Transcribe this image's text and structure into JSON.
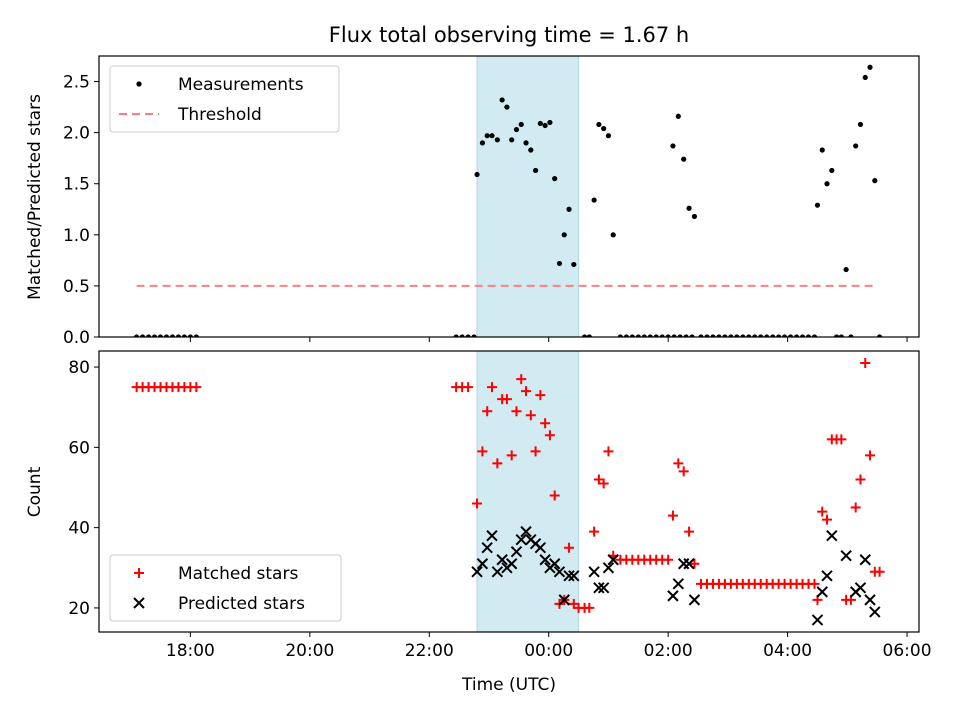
{
  "chart_data": [
    {
      "type": "scatter",
      "title": "Flux total observing time = 1.67 h",
      "xlabel": "",
      "ylabel": "Matched/Predicted stars",
      "xlim": [
        16.47,
        30.2
      ],
      "ylim": [
        0,
        2.75
      ],
      "yticks": [
        0.0,
        0.5,
        1.0,
        1.5,
        2.0,
        2.5
      ],
      "ytick_labels": [
        "0.0",
        "0.5",
        "1.0",
        "1.5",
        "2.0",
        "2.5"
      ],
      "shaded_interval": {
        "x": [
          22.8,
          24.5
        ],
        "color": "#add8e6"
      },
      "legend_position": "upper left",
      "threshold": {
        "name": "Threshold",
        "y": 0.5,
        "x": [
          17.1,
          29.5
        ],
        "color": "#ff7f7f",
        "style": "dashed"
      },
      "series": [
        {
          "name": "Measurements",
          "marker": "dot",
          "color": "#000000",
          "points": [
            [
              17.1,
              0
            ],
            [
              17.2,
              0
            ],
            [
              17.3,
              0
            ],
            [
              17.4,
              0
            ],
            [
              17.5,
              0
            ],
            [
              17.6,
              0
            ],
            [
              17.7,
              0
            ],
            [
              17.8,
              0
            ],
            [
              17.9,
              0
            ],
            [
              18.0,
              0
            ],
            [
              18.1,
              0
            ],
            [
              22.45,
              0
            ],
            [
              22.55,
              0
            ],
            [
              22.65,
              0
            ],
            [
              22.75,
              0
            ],
            [
              22.8,
              1.59
            ],
            [
              22.89,
              1.9
            ],
            [
              22.97,
              1.97
            ],
            [
              23.05,
              1.97
            ],
            [
              23.14,
              1.93
            ],
            [
              23.22,
              2.32
            ],
            [
              23.3,
              2.25
            ],
            [
              23.38,
              1.93
            ],
            [
              23.46,
              2.03
            ],
            [
              23.54,
              2.08
            ],
            [
              23.62,
              1.9
            ],
            [
              23.7,
              1.83
            ],
            [
              23.78,
              1.63
            ],
            [
              23.86,
              2.09
            ],
            [
              23.94,
              2.07
            ],
            [
              24.02,
              2.1
            ],
            [
              24.1,
              1.55
            ],
            [
              24.18,
              0.72
            ],
            [
              24.26,
              1.0
            ],
            [
              24.34,
              1.25
            ],
            [
              24.42,
              0.71
            ],
            [
              24.6,
              0
            ],
            [
              24.68,
              0
            ],
            [
              24.76,
              1.34
            ],
            [
              24.84,
              2.08
            ],
            [
              24.92,
              2.04
            ],
            [
              25.0,
              1.97
            ],
            [
              25.08,
              1.0
            ],
            [
              25.2,
              0
            ],
            [
              25.3,
              0
            ],
            [
              25.4,
              0
            ],
            [
              25.5,
              0
            ],
            [
              25.6,
              0
            ],
            [
              25.7,
              0
            ],
            [
              25.8,
              0
            ],
            [
              25.9,
              0
            ],
            [
              26.0,
              0
            ],
            [
              26.1,
              0
            ],
            [
              26.2,
              0
            ],
            [
              26.3,
              0
            ],
            [
              26.4,
              0
            ],
            [
              26.08,
              1.87
            ],
            [
              26.17,
              2.16
            ],
            [
              26.26,
              1.74
            ],
            [
              26.35,
              1.26
            ],
            [
              26.44,
              1.18
            ],
            [
              26.55,
              0
            ],
            [
              26.65,
              0
            ],
            [
              26.75,
              0
            ],
            [
              26.85,
              0
            ],
            [
              26.95,
              0
            ],
            [
              27.05,
              0
            ],
            [
              27.15,
              0
            ],
            [
              27.25,
              0
            ],
            [
              27.35,
              0
            ],
            [
              27.45,
              0
            ],
            [
              27.55,
              0
            ],
            [
              27.65,
              0
            ],
            [
              27.75,
              0
            ],
            [
              27.85,
              0
            ],
            [
              27.95,
              0
            ],
            [
              28.05,
              0
            ],
            [
              28.15,
              0
            ],
            [
              28.25,
              0
            ],
            [
              28.35,
              0
            ],
            [
              28.45,
              0
            ],
            [
              28.5,
              1.29
            ],
            [
              28.58,
              1.83
            ],
            [
              28.66,
              1.5
            ],
            [
              28.74,
              1.63
            ],
            [
              28.82,
              0
            ],
            [
              28.9,
              0
            ],
            [
              28.98,
              0.66
            ],
            [
              29.06,
              0
            ],
            [
              29.14,
              1.87
            ],
            [
              29.22,
              2.08
            ],
            [
              29.3,
              2.54
            ],
            [
              29.38,
              2.64
            ],
            [
              29.46,
              1.53
            ],
            [
              29.54,
              0
            ]
          ]
        }
      ]
    },
    {
      "type": "scatter",
      "xlabel": "Time (UTC)",
      "ylabel": "Count",
      "xlim": [
        16.47,
        30.2
      ],
      "ylim": [
        14,
        84
      ],
      "xticks": [
        18,
        20,
        22,
        24,
        26,
        28,
        30
      ],
      "xtick_labels": [
        "18:00",
        "20:00",
        "22:00",
        "00:00",
        "02:00",
        "04:00",
        "06:00"
      ],
      "yticks": [
        20,
        40,
        60,
        80
      ],
      "ytick_labels": [
        "20",
        "40",
        "60",
        "80"
      ],
      "shaded_interval": {
        "x": [
          22.8,
          24.5
        ],
        "color": "#add8e6"
      },
      "legend_position": "lower left",
      "series": [
        {
          "name": "Matched stars",
          "marker": "plus",
          "color": "#ff0000",
          "points": [
            [
              17.1,
              75
            ],
            [
              17.2,
              75
            ],
            [
              17.3,
              75
            ],
            [
              17.4,
              75
            ],
            [
              17.5,
              75
            ],
            [
              17.6,
              75
            ],
            [
              17.7,
              75
            ],
            [
              17.8,
              75
            ],
            [
              17.9,
              75
            ],
            [
              18.0,
              75
            ],
            [
              18.1,
              75
            ],
            [
              22.45,
              75
            ],
            [
              22.55,
              75
            ],
            [
              22.65,
              75
            ],
            [
              22.8,
              46
            ],
            [
              22.89,
              59
            ],
            [
              22.97,
              69
            ],
            [
              23.05,
              75
            ],
            [
              23.14,
              56
            ],
            [
              23.22,
              72
            ],
            [
              23.3,
              72
            ],
            [
              23.38,
              58
            ],
            [
              23.46,
              69
            ],
            [
              23.54,
              77
            ],
            [
              23.62,
              74
            ],
            [
              23.7,
              68
            ],
            [
              23.78,
              59
            ],
            [
              23.86,
              73
            ],
            [
              23.94,
              66
            ],
            [
              24.02,
              63
            ],
            [
              24.1,
              48
            ],
            [
              24.18,
              21
            ],
            [
              24.26,
              22
            ],
            [
              24.34,
              35
            ],
            [
              24.42,
              21
            ],
            [
              24.5,
              20
            ],
            [
              24.6,
              20
            ],
            [
              24.68,
              20
            ],
            [
              24.76,
              39
            ],
            [
              24.84,
              52
            ],
            [
              24.92,
              51
            ],
            [
              25.0,
              59
            ],
            [
              25.08,
              33
            ],
            [
              25.2,
              32
            ],
            [
              25.3,
              32
            ],
            [
              25.4,
              32
            ],
            [
              25.5,
              32
            ],
            [
              25.6,
              32
            ],
            [
              25.7,
              32
            ],
            [
              25.8,
              32
            ],
            [
              25.9,
              32
            ],
            [
              26.0,
              32
            ],
            [
              26.08,
              43
            ],
            [
              26.17,
              56
            ],
            [
              26.26,
              54
            ],
            [
              26.35,
              39
            ],
            [
              26.44,
              31
            ],
            [
              26.55,
              26
            ],
            [
              26.65,
              26
            ],
            [
              26.75,
              26
            ],
            [
              26.85,
              26
            ],
            [
              26.95,
              26
            ],
            [
              27.05,
              26
            ],
            [
              27.15,
              26
            ],
            [
              27.25,
              26
            ],
            [
              27.35,
              26
            ],
            [
              27.45,
              26
            ],
            [
              27.55,
              26
            ],
            [
              27.65,
              26
            ],
            [
              27.75,
              26
            ],
            [
              27.85,
              26
            ],
            [
              27.95,
              26
            ],
            [
              28.05,
              26
            ],
            [
              28.15,
              26
            ],
            [
              28.25,
              26
            ],
            [
              28.35,
              26
            ],
            [
              28.45,
              26
            ],
            [
              28.5,
              22
            ],
            [
              28.58,
              44
            ],
            [
              28.66,
              42
            ],
            [
              28.74,
              62
            ],
            [
              28.82,
              62
            ],
            [
              28.9,
              62
            ],
            [
              28.98,
              22
            ],
            [
              29.06,
              22
            ],
            [
              29.14,
              45
            ],
            [
              29.22,
              52
            ],
            [
              29.3,
              81
            ],
            [
              29.38,
              58
            ],
            [
              29.46,
              29
            ],
            [
              29.54,
              29
            ]
          ]
        },
        {
          "name": "Predicted stars",
          "marker": "x",
          "color": "#000000",
          "points": [
            [
              22.8,
              29
            ],
            [
              22.89,
              31
            ],
            [
              22.97,
              35
            ],
            [
              23.05,
              38
            ],
            [
              23.14,
              29
            ],
            [
              23.22,
              32
            ],
            [
              23.3,
              30
            ],
            [
              23.38,
              31
            ],
            [
              23.46,
              34
            ],
            [
              23.54,
              37
            ],
            [
              23.62,
              39
            ],
            [
              23.7,
              37
            ],
            [
              23.78,
              36
            ],
            [
              23.86,
              35
            ],
            [
              23.94,
              32
            ],
            [
              24.02,
              30
            ],
            [
              24.1,
              31
            ],
            [
              24.18,
              29
            ],
            [
              24.26,
              22
            ],
            [
              24.34,
              28
            ],
            [
              24.42,
              28
            ],
            [
              24.76,
              29
            ],
            [
              24.84,
              25
            ],
            [
              24.92,
              25
            ],
            [
              25.0,
              30
            ],
            [
              25.08,
              32
            ],
            [
              26.08,
              23
            ],
            [
              26.17,
              26
            ],
            [
              26.26,
              31
            ],
            [
              26.35,
              31
            ],
            [
              26.44,
              22
            ],
            [
              28.5,
              17
            ],
            [
              28.58,
              24
            ],
            [
              28.66,
              28
            ],
            [
              28.74,
              38
            ],
            [
              28.98,
              33
            ],
            [
              29.14,
              24
            ],
            [
              29.22,
              25
            ],
            [
              29.3,
              32
            ],
            [
              29.38,
              22
            ],
            [
              29.46,
              19
            ]
          ]
        }
      ]
    }
  ]
}
